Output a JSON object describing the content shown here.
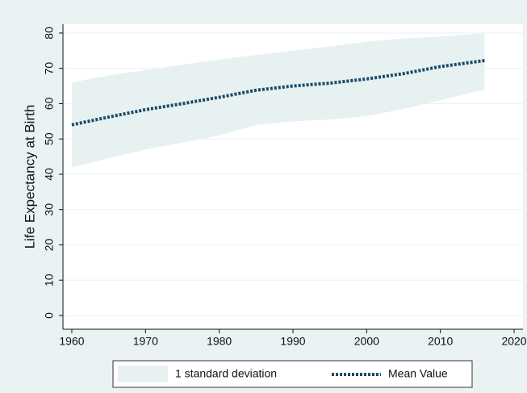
{
  "chart_data": {
    "type": "line",
    "ylabel": "Life Expectancy at Birth",
    "x": [
      1960,
      1965,
      1970,
      1975,
      1980,
      1985,
      1990,
      1995,
      2000,
      2005,
      2010,
      2016
    ],
    "series": [
      {
        "name": "1 standard deviation",
        "color": "#e7f1f2",
        "lower": [
          42,
          44.5,
          47,
          49,
          51,
          54,
          55,
          55.5,
          56.5,
          58.5,
          61,
          64
        ],
        "upper": [
          66,
          68,
          69.5,
          71,
          72.5,
          73.8,
          75,
          76.2,
          77.5,
          78.5,
          79,
          80
        ]
      },
      {
        "name": "Mean Value",
        "color": "#1a4a6b",
        "values": [
          54,
          56.2,
          58.3,
          60,
          61.8,
          63.8,
          65,
          65.8,
          67,
          68.5,
          70.5,
          72.2
        ]
      }
    ],
    "xlim": [
      1958.8,
      2021.2
    ],
    "xticks": [
      1960,
      1970,
      1980,
      1990,
      2000,
      2010,
      2020
    ],
    "ylim": [
      -3.9,
      82.5
    ],
    "yticks": [
      0,
      10,
      20,
      30,
      40,
      50,
      60,
      70,
      80
    ],
    "grid": true
  }
}
